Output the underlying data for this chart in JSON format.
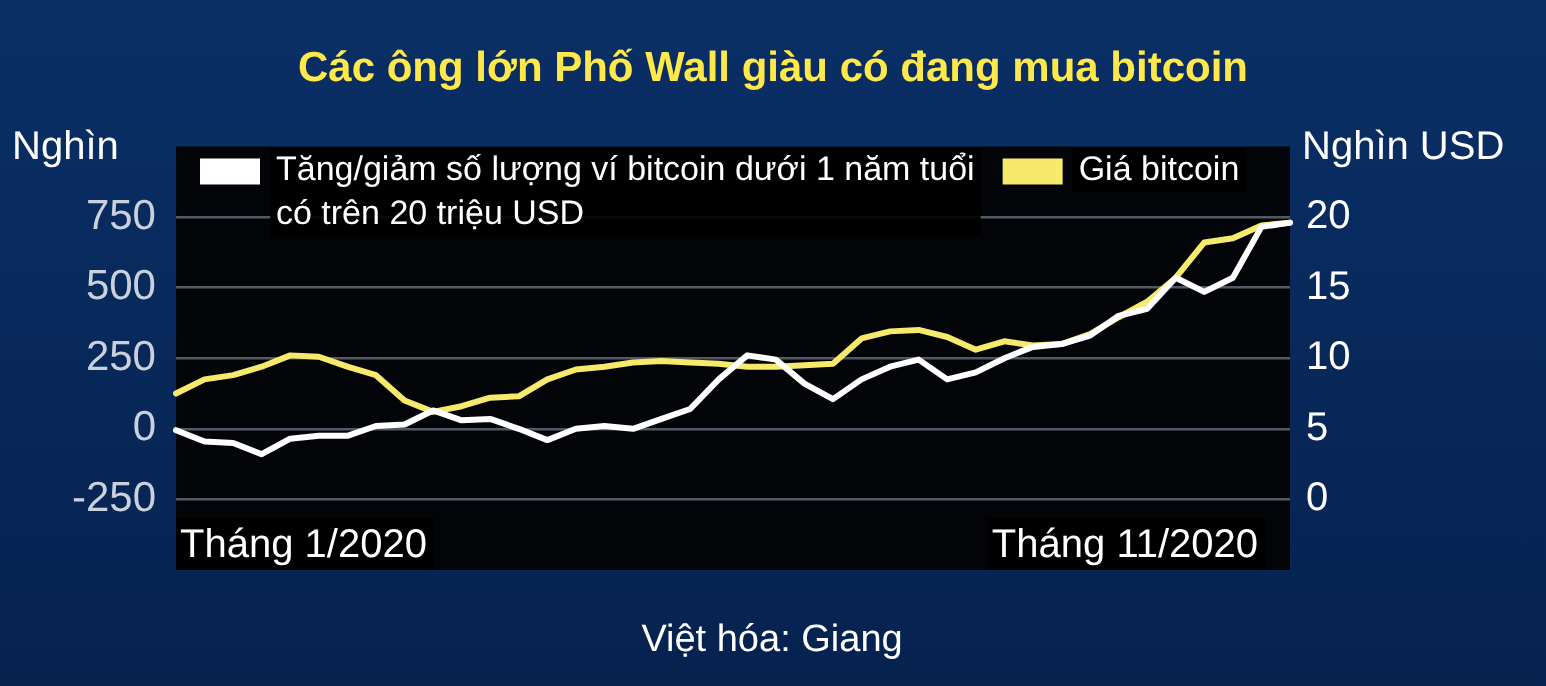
{
  "chart_data": {
    "type": "line",
    "title": "Các ông lớn Phố Wall giàu có đang mua bitcoin",
    "ylabel": "Nghìn",
    "y2label": "Nghìn USD",
    "categories": [
      null,
      null,
      null,
      null,
      null,
      null,
      null,
      null,
      null,
      null,
      null,
      null,
      null,
      null,
      null,
      null,
      null,
      null,
      null,
      null,
      null,
      null,
      null,
      null,
      null,
      null,
      null,
      null,
      null,
      null,
      null,
      null,
      null,
      null,
      null,
      null,
      null,
      null,
      null,
      null
    ],
    "series": [
      {
        "name": "Tăng/giảm số lượng ví bitcoin dưới 1 năm tuổi có trên 20 triệu USD",
        "color": "#ffffff",
        "values": [
          -5,
          -45,
          -50,
          -90,
          -35,
          -25,
          -25,
          10,
          15,
          65,
          30,
          35,
          0,
          -40,
          0,
          10,
          0,
          35,
          70,
          175,
          260,
          245,
          160,
          105,
          175,
          220,
          245,
          175,
          200,
          250,
          290,
          300,
          330,
          400,
          425,
          535,
          485,
          535,
          715,
          730
        ]
      },
      {
        "name": "Giá bitcoin",
        "color": "#f7e96b",
        "axis": "y2",
        "values": [
          7.5,
          8.5,
          8.8,
          9.4,
          10.2,
          10.1,
          9.4,
          8.8,
          7.0,
          6.2,
          6.6,
          7.2,
          7.3,
          8.5,
          9.2,
          9.4,
          9.7,
          9.8,
          9.7,
          9.6,
          9.4,
          9.4,
          9.5,
          9.6,
          11.4,
          11.9,
          12.0,
          11.5,
          10.6,
          11.2,
          10.9,
          11.0,
          11.7,
          12.9,
          14.0,
          15.7,
          18.2,
          18.5,
          19.4,
          19.6
        ]
      }
    ],
    "ylim": [
      -500,
      1000
    ],
    "yticks": [
      -250,
      0,
      250,
      500,
      750
    ],
    "y2lim": [
      -5,
      25
    ],
    "y2ticks": [
      0,
      5,
      10,
      15,
      20
    ],
    "grid": "y",
    "legend": "top",
    "marker": "none",
    "line_style": "solid",
    "annotations": [
      "Tháng 1/2020",
      "Tháng 11/2020",
      "Việt hóa: Giang"
    ]
  }
}
